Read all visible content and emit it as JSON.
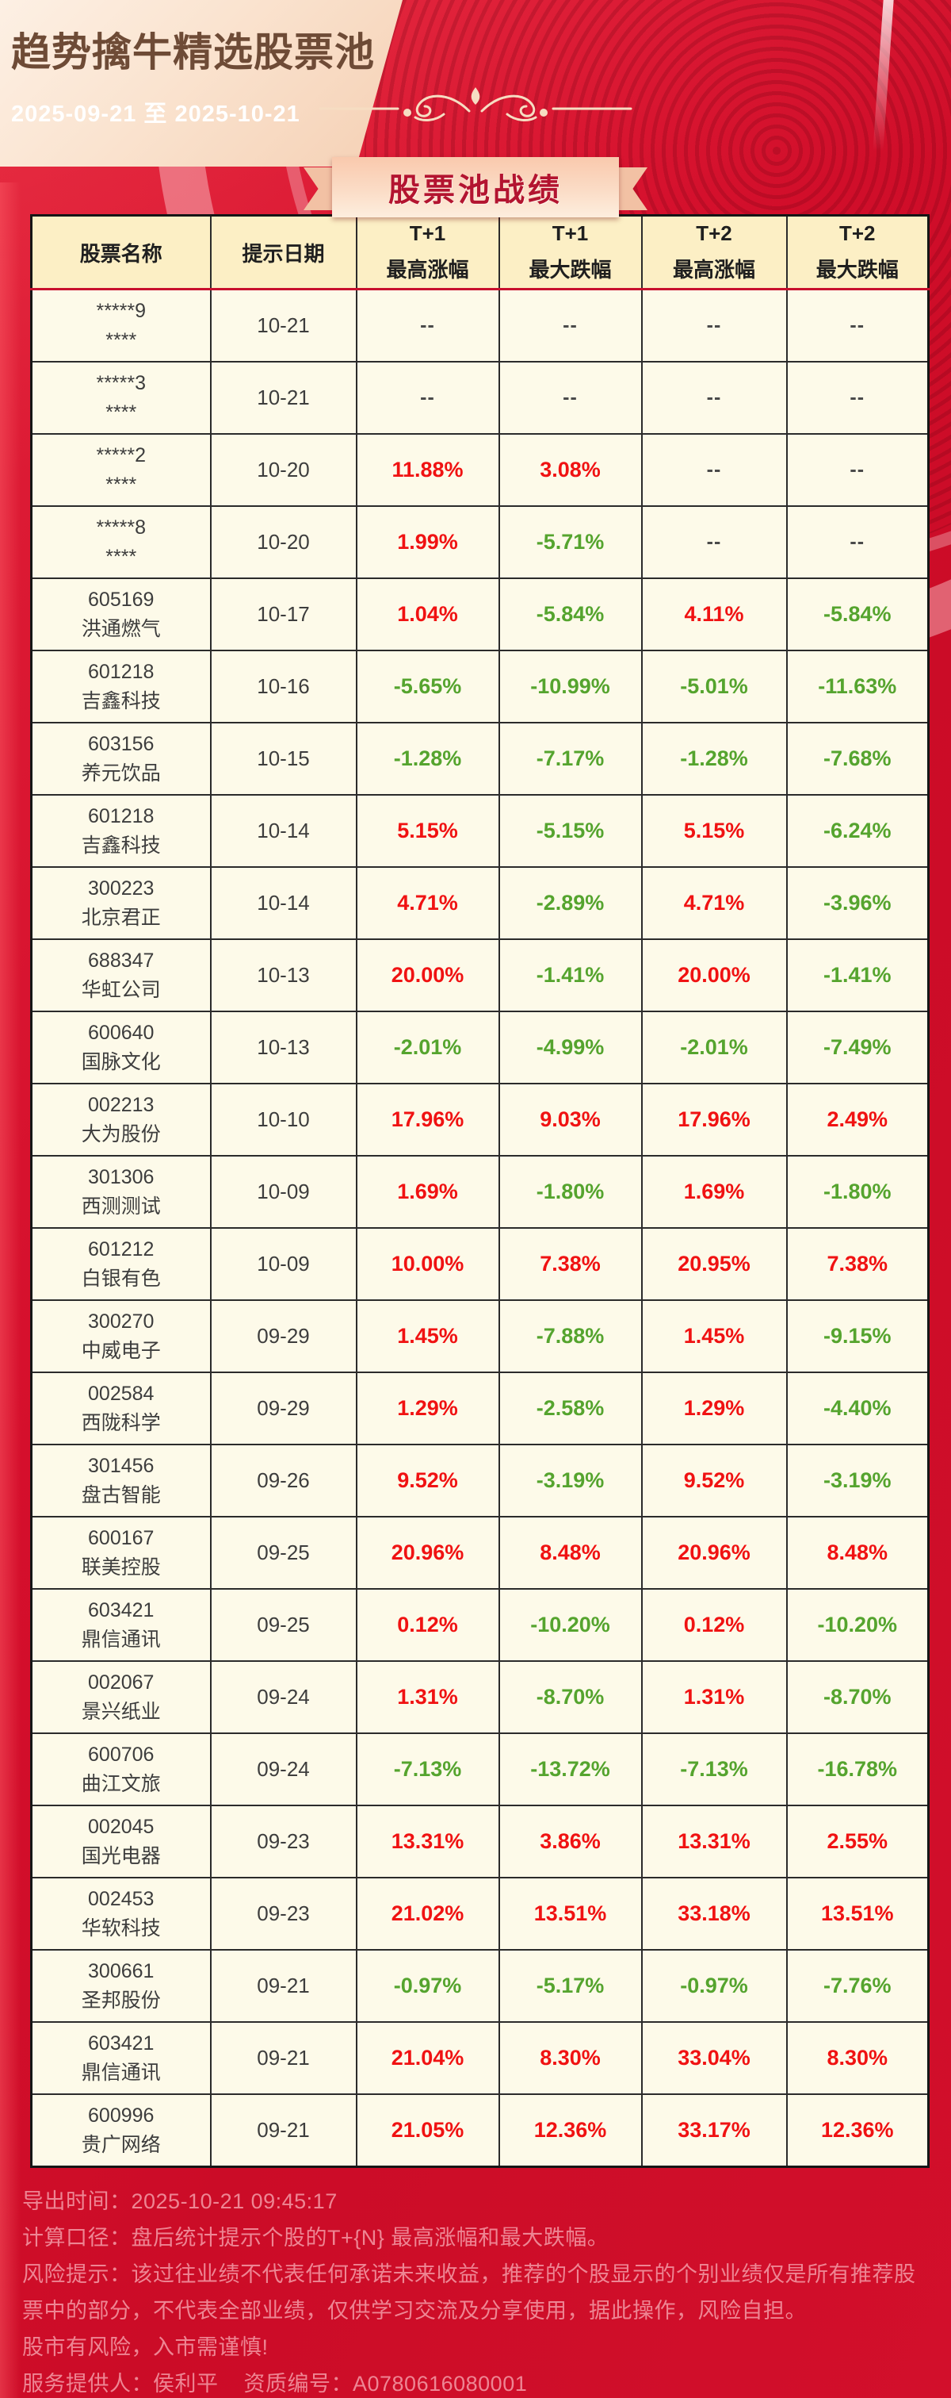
{
  "header": {
    "title": "趋势擒牛精选股票池",
    "date_range": "2025-09-21 至 2025-10-21"
  },
  "banner": {
    "label": "股票池战绩"
  },
  "table": {
    "columns": [
      {
        "line1": "股票名称",
        "line2": ""
      },
      {
        "line1": "提示日期",
        "line2": ""
      },
      {
        "line1": "T+1",
        "line2": "最高涨幅"
      },
      {
        "line1": "T+1",
        "line2": "最大跌幅"
      },
      {
        "line1": "T+2",
        "line2": "最高涨幅"
      },
      {
        "line1": "T+2",
        "line2": "最大跌幅"
      }
    ],
    "rows": [
      {
        "code": "*****9",
        "name": "****",
        "date": "10-21",
        "t1_max_gain": "--",
        "t1_max_drop": "--",
        "t2_max_gain": "--",
        "t2_max_drop": "--"
      },
      {
        "code": "*****3",
        "name": "****",
        "date": "10-21",
        "t1_max_gain": "--",
        "t1_max_drop": "--",
        "t2_max_gain": "--",
        "t2_max_drop": "--"
      },
      {
        "code": "*****2",
        "name": "****",
        "date": "10-20",
        "t1_max_gain": "11.88%",
        "t1_max_drop": "3.08%",
        "t2_max_gain": "--",
        "t2_max_drop": "--"
      },
      {
        "code": "*****8",
        "name": "****",
        "date": "10-20",
        "t1_max_gain": "1.99%",
        "t1_max_drop": "-5.71%",
        "t2_max_gain": "--",
        "t2_max_drop": "--"
      },
      {
        "code": "605169",
        "name": "洪通燃气",
        "date": "10-17",
        "t1_max_gain": "1.04%",
        "t1_max_drop": "-5.84%",
        "t2_max_gain": "4.11%",
        "t2_max_drop": "-5.84%"
      },
      {
        "code": "601218",
        "name": "吉鑫科技",
        "date": "10-16",
        "t1_max_gain": "-5.65%",
        "t1_max_drop": "-10.99%",
        "t2_max_gain": "-5.01%",
        "t2_max_drop": "-11.63%"
      },
      {
        "code": "603156",
        "name": "养元饮品",
        "date": "10-15",
        "t1_max_gain": "-1.28%",
        "t1_max_drop": "-7.17%",
        "t2_max_gain": "-1.28%",
        "t2_max_drop": "-7.68%"
      },
      {
        "code": "601218",
        "name": "吉鑫科技",
        "date": "10-14",
        "t1_max_gain": "5.15%",
        "t1_max_drop": "-5.15%",
        "t2_max_gain": "5.15%",
        "t2_max_drop": "-6.24%"
      },
      {
        "code": "300223",
        "name": "北京君正",
        "date": "10-14",
        "t1_max_gain": "4.71%",
        "t1_max_drop": "-2.89%",
        "t2_max_gain": "4.71%",
        "t2_max_drop": "-3.96%"
      },
      {
        "code": "688347",
        "name": "华虹公司",
        "date": "10-13",
        "t1_max_gain": "20.00%",
        "t1_max_drop": "-1.41%",
        "t2_max_gain": "20.00%",
        "t2_max_drop": "-1.41%"
      },
      {
        "code": "600640",
        "name": "国脉文化",
        "date": "10-13",
        "t1_max_gain": "-2.01%",
        "t1_max_drop": "-4.99%",
        "t2_max_gain": "-2.01%",
        "t2_max_drop": "-7.49%"
      },
      {
        "code": "002213",
        "name": "大为股份",
        "date": "10-10",
        "t1_max_gain": "17.96%",
        "t1_max_drop": "9.03%",
        "t2_max_gain": "17.96%",
        "t2_max_drop": "2.49%"
      },
      {
        "code": "301306",
        "name": "西测测试",
        "date": "10-09",
        "t1_max_gain": "1.69%",
        "t1_max_drop": "-1.80%",
        "t2_max_gain": "1.69%",
        "t2_max_drop": "-1.80%"
      },
      {
        "code": "601212",
        "name": "白银有色",
        "date": "10-09",
        "t1_max_gain": "10.00%",
        "t1_max_drop": "7.38%",
        "t2_max_gain": "20.95%",
        "t2_max_drop": "7.38%"
      },
      {
        "code": "300270",
        "name": "中威电子",
        "date": "09-29",
        "t1_max_gain": "1.45%",
        "t1_max_drop": "-7.88%",
        "t2_max_gain": "1.45%",
        "t2_max_drop": "-9.15%"
      },
      {
        "code": "002584",
        "name": "西陇科学",
        "date": "09-29",
        "t1_max_gain": "1.29%",
        "t1_max_drop": "-2.58%",
        "t2_max_gain": "1.29%",
        "t2_max_drop": "-4.40%"
      },
      {
        "code": "301456",
        "name": "盘古智能",
        "date": "09-26",
        "t1_max_gain": "9.52%",
        "t1_max_drop": "-3.19%",
        "t2_max_gain": "9.52%",
        "t2_max_drop": "-3.19%"
      },
      {
        "code": "600167",
        "name": "联美控股",
        "date": "09-25",
        "t1_max_gain": "20.96%",
        "t1_max_drop": "8.48%",
        "t2_max_gain": "20.96%",
        "t2_max_drop": "8.48%"
      },
      {
        "code": "603421",
        "name": "鼎信通讯",
        "date": "09-25",
        "t1_max_gain": "0.12%",
        "t1_max_drop": "-10.20%",
        "t2_max_gain": "0.12%",
        "t2_max_drop": "-10.20%"
      },
      {
        "code": "002067",
        "name": "景兴纸业",
        "date": "09-24",
        "t1_max_gain": "1.31%",
        "t1_max_drop": "-8.70%",
        "t2_max_gain": "1.31%",
        "t2_max_drop": "-8.70%"
      },
      {
        "code": "600706",
        "name": "曲江文旅",
        "date": "09-24",
        "t1_max_gain": "-7.13%",
        "t1_max_drop": "-13.72%",
        "t2_max_gain": "-7.13%",
        "t2_max_drop": "-16.78%"
      },
      {
        "code": "002045",
        "name": "国光电器",
        "date": "09-23",
        "t1_max_gain": "13.31%",
        "t1_max_drop": "3.86%",
        "t2_max_gain": "13.31%",
        "t2_max_drop": "2.55%"
      },
      {
        "code": "002453",
        "name": "华软科技",
        "date": "09-23",
        "t1_max_gain": "21.02%",
        "t1_max_drop": "13.51%",
        "t2_max_gain": "33.18%",
        "t2_max_drop": "13.51%"
      },
      {
        "code": "300661",
        "name": "圣邦股份",
        "date": "09-21",
        "t1_max_gain": "-0.97%",
        "t1_max_drop": "-5.17%",
        "t2_max_gain": "-0.97%",
        "t2_max_drop": "-7.76%"
      },
      {
        "code": "603421",
        "name": "鼎信通讯",
        "date": "09-21",
        "t1_max_gain": "21.04%",
        "t1_max_drop": "8.30%",
        "t2_max_gain": "33.04%",
        "t2_max_drop": "8.30%"
      },
      {
        "code": "600996",
        "name": "贵广网络",
        "date": "09-21",
        "t1_max_gain": "21.05%",
        "t1_max_drop": "12.36%",
        "t2_max_gain": "33.17%",
        "t2_max_drop": "12.36%"
      }
    ]
  },
  "footer": {
    "export_time": "导出时间：2025-10-21 09:45:17",
    "calculation": "计算口径：盘后统计提示个股的T+{N} 最高涨幅和最大跌幅。",
    "risk": "风险提示：该过往业绩不代表任何承诺未来收益，推荐的个股显示的个别业绩仅是所有推荐股票中的部分，不代表全部业绩，仅供学习交流及分享使用，据此操作，风险自担。",
    "market_warning": "股市有风险，入市需谨慎!",
    "provider": "服务提供人：侯利平    资质编号：A0780616080001"
  },
  "colors": {
    "page_red": "#d50f2c",
    "accent_red": "#c8102e",
    "positive": "#f01212",
    "negative": "#55a42e",
    "header_bg": "#fcefc5",
    "row_bg": "#fdfae9",
    "title_brown": "#6e4b36",
    "ribbon_text": "#b31430",
    "footer_text": "#ee8593"
  }
}
